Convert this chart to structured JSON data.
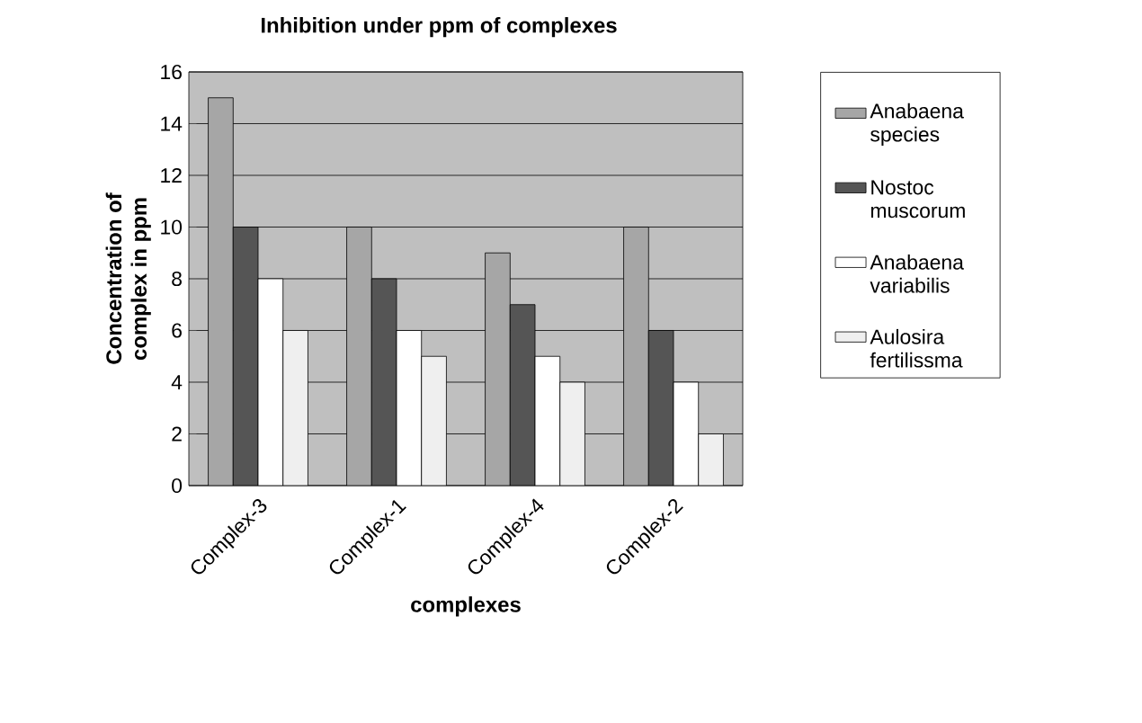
{
  "chart_data": {
    "type": "bar",
    "title": "Inhibition under ppm of complexes",
    "xlabel": "complexes",
    "ylabel": "Concentration of complex in ppm",
    "categories": [
      "Complex-3",
      "Complex-1",
      "Complex-4",
      "Complex-2"
    ],
    "series": [
      {
        "name": "Anabaena species",
        "color": "#a6a6a6",
        "values": [
          15,
          10,
          9,
          10
        ]
      },
      {
        "name": "Nostoc muscorum",
        "color": "#555555",
        "values": [
          10,
          8,
          7,
          6
        ]
      },
      {
        "name": "Anabaena variabilis",
        "color": "#ffffff",
        "values": [
          8,
          6,
          5,
          4
        ]
      },
      {
        "name": "Aulosira fertilissma",
        "color": "#efefef",
        "values": [
          6,
          5,
          4,
          2
        ]
      }
    ],
    "ylim": [
      0,
      16
    ],
    "yticks": [
      0,
      2,
      4,
      6,
      8,
      10,
      12,
      14,
      16
    ],
    "grid": "y",
    "legend": "right"
  }
}
